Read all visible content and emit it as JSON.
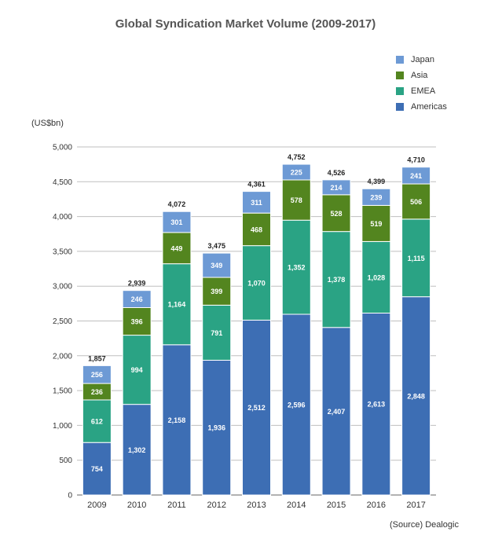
{
  "chart_data": {
    "type": "bar",
    "stacked": true,
    "title": "Global Syndication Market Volume (2009-2017)",
    "ylabel": "(US$bn)",
    "xlabel": "",
    "source": "(Source) Dealogic",
    "categories": [
      "2009",
      "2010",
      "2011",
      "2012",
      "2013",
      "2014",
      "2015",
      "2016",
      "2017"
    ],
    "ylim": [
      0,
      5000
    ],
    "yticks": [
      0,
      500,
      1000,
      1500,
      2000,
      2500,
      3000,
      3500,
      4000,
      4500,
      5000
    ],
    "ytick_labels": [
      "0",
      "500",
      "1,000",
      "1,500",
      "2,000",
      "2,500",
      "3,000",
      "3,500",
      "4,000",
      "4,500",
      "5,000"
    ],
    "legend_position": "top-right",
    "totals": [
      1857,
      2939,
      4072,
      3475,
      4361,
      4752,
      4526,
      4399,
      4710
    ],
    "series": [
      {
        "name": "Americas",
        "color": "#3d6eb4",
        "values": [
          754,
          1302,
          2158,
          1936,
          2512,
          2596,
          2407,
          2613,
          2848
        ]
      },
      {
        "name": "EMEA",
        "color": "#2aa384",
        "values": [
          612,
          994,
          1164,
          791,
          1070,
          1352,
          1378,
          1028,
          1115
        ]
      },
      {
        "name": "Asia",
        "color": "#53851f",
        "values": [
          236,
          396,
          449,
          399,
          468,
          578,
          528,
          519,
          506
        ]
      },
      {
        "name": "Japan",
        "color": "#6d9ad5",
        "values": [
          256,
          246,
          301,
          349,
          311,
          225,
          214,
          239,
          241
        ]
      }
    ]
  }
}
